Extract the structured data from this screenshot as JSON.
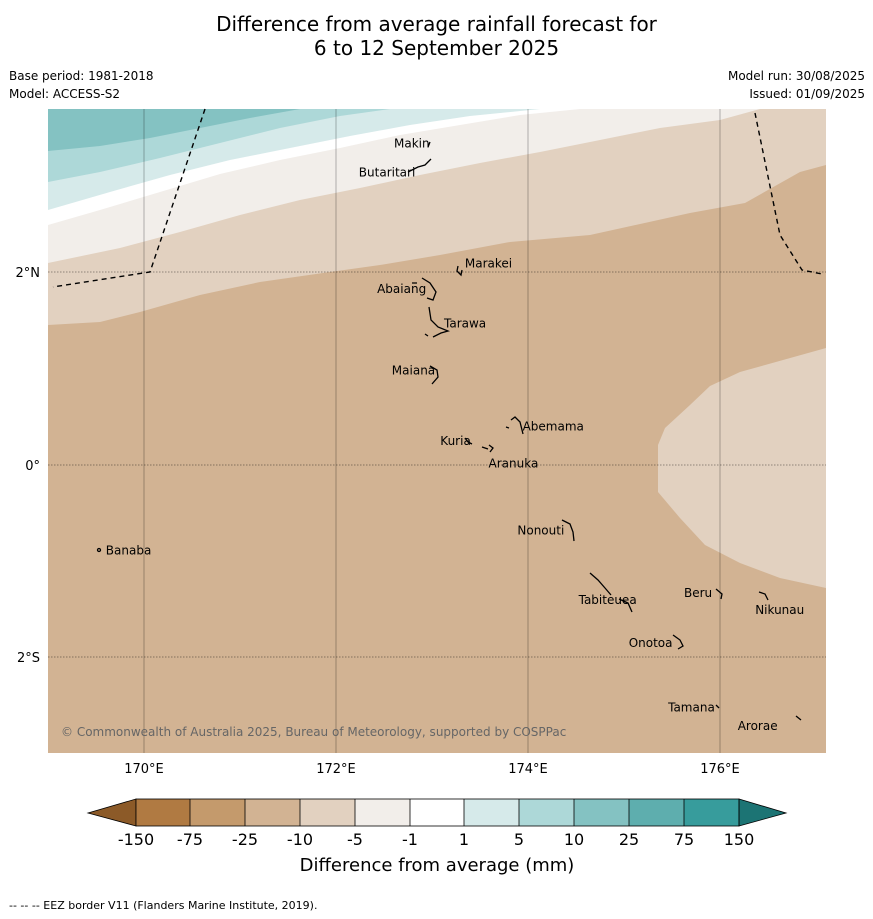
{
  "header": {
    "title_line1": "Difference from average rainfall forecast for",
    "title_line2": "6 to 12 September 2025",
    "base_period": "Base period: 1981-2018",
    "model": "Model: ACCESS-S2",
    "model_run": "Model run: 30/08/2025",
    "issued": "Issued: 01/09/2025"
  },
  "map": {
    "lat_labels": [
      "2°N",
      "0°",
      "2°S"
    ],
    "lon_labels": [
      "170°E",
      "172°E",
      "174°E",
      "176°E"
    ],
    "copyright": "© Commonwealth of Australia 2025, Bureau of Meteorology, supported by COSPPac",
    "places": [
      {
        "name": "Makin",
        "lon": 172.99,
        "lat": 3.38
      },
      {
        "name": "Butaritari",
        "lon": 172.79,
        "lat": 3.07
      },
      {
        "name": "Marakei",
        "lon": 173.27,
        "lat": 2.01
      },
      {
        "name": "Abaiang",
        "lon": 172.97,
        "lat": 1.83
      },
      {
        "name": "Tarawa",
        "lon": 173.0,
        "lat": 1.42
      },
      {
        "name": "Maiana",
        "lon": 173.04,
        "lat": 0.97
      },
      {
        "name": "Abemama",
        "lon": 173.86,
        "lat": 0.38
      },
      {
        "name": "Kuria",
        "lon": 173.42,
        "lat": 0.23
      },
      {
        "name": "Aranuka",
        "lon": 173.62,
        "lat": 0.17
      },
      {
        "name": "Banaba",
        "lon": 169.54,
        "lat": -0.88
      },
      {
        "name": "Nonouti",
        "lon": 174.43,
        "lat": -0.65
      },
      {
        "name": "Beru",
        "lon": 176.0,
        "lat": -1.33
      },
      {
        "name": "Nikunau",
        "lon": 176.46,
        "lat": -1.38
      },
      {
        "name": "Tabiteuea",
        "lon": 174.85,
        "lat": -1.35
      },
      {
        "name": "Onotoa",
        "lon": 175.57,
        "lat": -1.83
      },
      {
        "name": "Tamana",
        "lon": 175.98,
        "lat": -2.5
      },
      {
        "name": "Arorae",
        "lon": 176.82,
        "lat": -2.65
      }
    ]
  },
  "colorbar": {
    "label": "Difference from average (mm)",
    "ticks": [
      "-150",
      "-75",
      "-25",
      "-10",
      "-5",
      "-1",
      "1",
      "5",
      "10",
      "25",
      "75",
      "150"
    ],
    "colors": {
      "below_150": "#8c5a28",
      "n150_n75": "#b07a42",
      "n75_n25": "#c49a6c",
      "n25_n10": "#d2b393",
      "n10_n5": "#e2d1c0",
      "n5_n1": "#f2eeea",
      "n1_p1": "#ffffff",
      "p1_p5": "#d6eaea",
      "p5_p10": "#add8d8",
      "p10_p25": "#84c2c2",
      "p25_p75": "#5eaeae",
      "p75_p150": "#379c9c",
      "above_150": "#1c7474"
    }
  },
  "footer": {
    "legend_text": "--  --  -- EEZ border V11 (Flanders Marine Institute, 2019)."
  }
}
